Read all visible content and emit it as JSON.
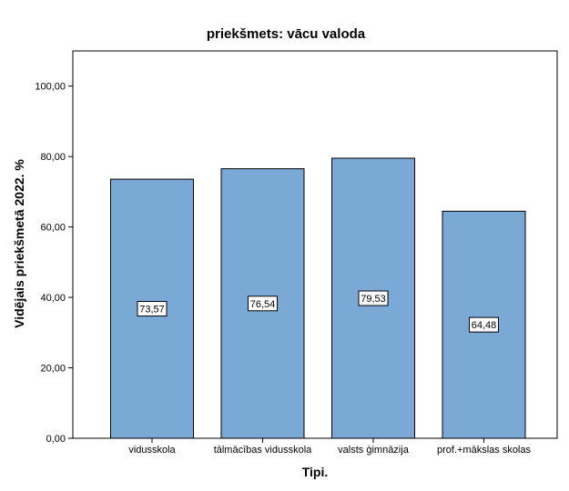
{
  "chart_data": {
    "type": "bar",
    "title": "priekšmets: vācu valoda",
    "xlabel": "Tipi.",
    "ylabel": "Vidējais priekšmetā 2022. %",
    "categories": [
      "vidusskola",
      "tālmācības vidusskola",
      "valsts ģimnāzija",
      "prof.+mākslas skolas"
    ],
    "values": [
      73.57,
      76.54,
      79.53,
      64.48
    ],
    "value_labels": [
      "73,57",
      "76,54",
      "79,53",
      "64,48"
    ],
    "yticks": [
      0,
      20,
      40,
      60,
      80,
      100
    ],
    "ytick_labels": [
      "0,00",
      "20,00",
      "40,00",
      "60,00",
      "80,00",
      "100,00"
    ],
    "ylim": [
      0,
      110
    ],
    "grid": false,
    "bar_color": "#7aa9d6",
    "bar_edge_color": "#000000"
  }
}
